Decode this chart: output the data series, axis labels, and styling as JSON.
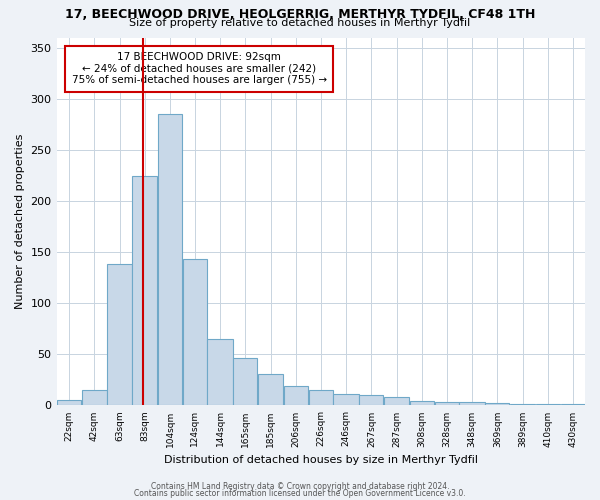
{
  "title_line1": "17, BEECHWOOD DRIVE, HEOLGERRIG, MERTHYR TYDFIL, CF48 1TH",
  "title_line2": "Size of property relative to detached houses in Merthyr Tydfil",
  "xlabel": "Distribution of detached houses by size in Merthyr Tydfil",
  "ylabel": "Number of detached properties",
  "bar_labels": [
    "22sqm",
    "42sqm",
    "63sqm",
    "83sqm",
    "104sqm",
    "124sqm",
    "144sqm",
    "165sqm",
    "185sqm",
    "206sqm",
    "226sqm",
    "246sqm",
    "267sqm",
    "287sqm",
    "308sqm",
    "328sqm",
    "348sqm",
    "369sqm",
    "389sqm",
    "410sqm",
    "430sqm"
  ],
  "bar_values": [
    5,
    15,
    138,
    224,
    285,
    143,
    65,
    46,
    31,
    19,
    15,
    11,
    10,
    8,
    4,
    3,
    3,
    2,
    1,
    1,
    1
  ],
  "bar_color": "#c8d8e8",
  "bar_edge_color": "#6fa8c8",
  "property_line_x": 92,
  "property_line_label": "17 BEECHWOOD DRIVE: 92sqm",
  "annotation_line2": "← 24% of detached houses are smaller (242)",
  "annotation_line3": "75% of semi-detached houses are larger (755) →",
  "annotation_box_color": "#ffffff",
  "annotation_box_edge": "#cc0000",
  "vline_color": "#cc0000",
  "ylim": [
    0,
    360
  ],
  "yticks": [
    0,
    50,
    100,
    150,
    200,
    250,
    300,
    350
  ],
  "footnote1": "Contains HM Land Registry data © Crown copyright and database right 2024.",
  "footnote2": "Contains public sector information licensed under the Open Government Licence v3.0.",
  "bg_color": "#eef2f7",
  "plot_bg_color": "#ffffff",
  "grid_color": "#c8d4e0"
}
